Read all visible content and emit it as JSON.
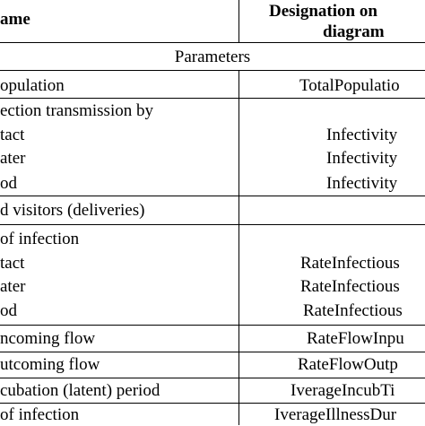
{
  "header": {
    "name": "ame",
    "designation_line1": "Designation on",
    "designation_line2": "diagram"
  },
  "section": "Parameters",
  "rows": [
    {
      "left": "opulation",
      "right": "TotalPopulatio"
    },
    {
      "left": "ection transmission by",
      "right": ""
    },
    {
      "left": "tact",
      "right": "Infectivity"
    },
    {
      "left": "ater",
      "right": "Infectivity"
    },
    {
      "left": "od",
      "right": "Infectivity"
    },
    {
      "left": "d visitors (deliveries)",
      "right": ""
    },
    {
      "left": "of infection",
      "right": ""
    },
    {
      "left": "tact",
      "right": "RateInfectious"
    },
    {
      "left": "ater",
      "right": "RateInfectious"
    },
    {
      "left": "od",
      "right": "RateInfectious"
    },
    {
      "left": "ncoming flow",
      "right": "RateFlowInpu"
    },
    {
      "left": "utcoming flow",
      "right": "RateFlowOutp"
    },
    {
      "left": "cubation (latent) period",
      "right": "IverageIncubTi"
    },
    {
      "left": "of infection",
      "right": "IverageIllnessDur"
    }
  ]
}
